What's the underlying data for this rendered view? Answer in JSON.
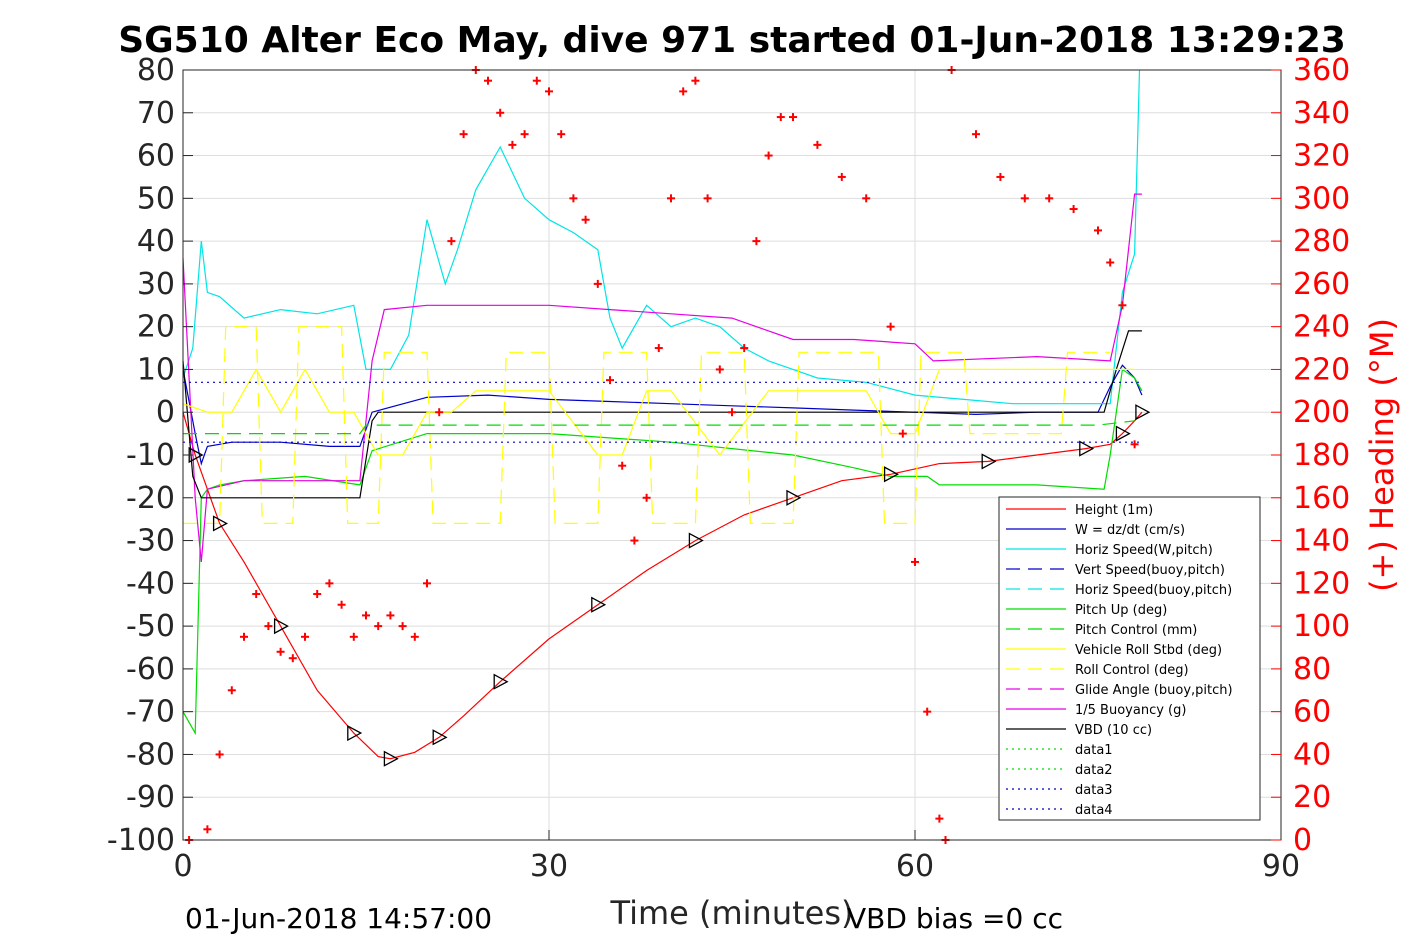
{
  "chart_data": {
    "type": "line",
    "title": "SG510 Alter Eco May, dive 971 started 01-Jun-2018 13:29:23",
    "xlabel": "Time (minutes)",
    "ylabel_right": "(+) Heading (°M)",
    "xlim": [
      0,
      90
    ],
    "ylim": [
      -100,
      80
    ],
    "ylim_right": [
      0,
      360
    ],
    "x_ticks": [
      "0",
      "30",
      "60",
      "90"
    ],
    "x_tick_values": [
      0,
      30,
      60,
      90
    ],
    "y_ticks": [
      "80",
      "70",
      "60",
      "50",
      "40",
      "30",
      "20",
      "10",
      "0",
      "-10",
      "-20",
      "-30",
      "-40",
      "-50",
      "-60",
      "-70",
      "-80",
      "-90",
      "-100"
    ],
    "y_tick_values": [
      80,
      70,
      60,
      50,
      40,
      30,
      20,
      10,
      0,
      -10,
      -20,
      -30,
      -40,
      -50,
      -60,
      -70,
      -80,
      -90,
      -100
    ],
    "y_right_ticks": [
      "360",
      "340",
      "320",
      "300",
      "280",
      "260",
      "240",
      "220",
      "200",
      "180",
      "160",
      "140",
      "120",
      "100",
      "80",
      "60",
      "40",
      "20",
      "0"
    ],
    "y_right_tick_values": [
      360,
      340,
      320,
      300,
      280,
      260,
      240,
      220,
      200,
      180,
      160,
      140,
      120,
      100,
      80,
      60,
      40,
      20,
      0
    ],
    "grid": true,
    "legend_position": "bottom-right",
    "footer_left": "01-Jun-2018 14:57:00",
    "footer_right": "VBD bias =0 cc",
    "legend": [
      {
        "name": "Height (1m)",
        "color": "#ff0000",
        "dash": "solid"
      },
      {
        "name": "W = dz/dt (cm/s)",
        "color": "#0000cc",
        "dash": "solid"
      },
      {
        "name": "Horiz Speed(W,pitch)",
        "color": "#00e5e5",
        "dash": "solid"
      },
      {
        "name": "Vert Speed(buoy,pitch)",
        "color": "#0000cc",
        "dash": "dashed"
      },
      {
        "name": "Horiz Speed(buoy,pitch)",
        "color": "#00e5e5",
        "dash": "dashed"
      },
      {
        "name": "Pitch Up (deg)",
        "color": "#00dd00",
        "dash": "solid"
      },
      {
        "name": "Pitch Control (mm)",
        "color": "#00dd00",
        "dash": "dashed"
      },
      {
        "name": "Vehicle Roll Stbd (deg)",
        "color": "#ffff00",
        "dash": "solid"
      },
      {
        "name": "Roll Control (deg)",
        "color": "#ffff00",
        "dash": "dashed"
      },
      {
        "name": "Glide Angle (buoy,pitch)",
        "color": "#e500e5",
        "dash": "dashed"
      },
      {
        "name": "1/5 Buoyancy (g)",
        "color": "#e500e5",
        "dash": "solid"
      },
      {
        "name": "VBD (10 cc)",
        "color": "#000000",
        "dash": "solid"
      },
      {
        "name": "data1",
        "color": "#00dd00",
        "dash": "dotted"
      },
      {
        "name": "data2",
        "color": "#00dd00",
        "dash": "dotted"
      },
      {
        "name": "data3",
        "color": "#0000cc",
        "dash": "dotted"
      },
      {
        "name": "data4",
        "color": "#0000cc",
        "dash": "dotted"
      }
    ],
    "series": [
      {
        "name": "Height (1m)",
        "x": [
          0,
          1,
          2,
          3,
          5,
          8,
          11,
          14,
          16,
          17,
          19,
          21,
          23,
          26,
          30,
          34,
          38,
          42,
          46,
          50,
          54,
          58,
          62,
          66,
          70,
          74,
          76,
          77,
          78,
          78.6
        ],
        "y": [
          0,
          -10,
          -18,
          -26,
          -35,
          -50,
          -65,
          -75,
          -80.5,
          -81,
          -79.5,
          -76,
          -71,
          -63,
          -53,
          -45,
          -37,
          -30,
          -24,
          -20,
          -16,
          -14.5,
          -12,
          -11.5,
          -10,
          -8.5,
          -7.5,
          -5,
          -2,
          0
        ]
      },
      {
        "name": "W = dz/dt (cm/s)",
        "x": [
          0,
          1,
          1.5,
          2,
          4,
          8,
          12,
          14.5,
          15.5,
          20,
          25,
          30,
          35,
          40,
          45,
          50,
          55,
          60,
          65,
          70,
          75,
          76,
          77,
          78,
          78.6
        ],
        "y": [
          10,
          -5,
          -12,
          -8,
          -7,
          -7,
          -8,
          -8,
          0,
          3.5,
          4,
          3,
          2.5,
          2,
          1.5,
          1,
          0.5,
          0,
          -0.5,
          0,
          0,
          6,
          11,
          8,
          4
        ]
      },
      {
        "name": "Horiz Speed(W,pitch)",
        "x": [
          0,
          0.8,
          1.5,
          2,
          3,
          5,
          8,
          11,
          14,
          15,
          17,
          18.5,
          20,
          21.5,
          22.5,
          24,
          26,
          28,
          30,
          32,
          34,
          35,
          36,
          38,
          40,
          42,
          44,
          46,
          48,
          50,
          52,
          56,
          60,
          64,
          68,
          72,
          76,
          77,
          78,
          78.4
        ],
        "y": [
          8,
          15,
          40,
          28,
          27,
          22,
          24,
          23,
          25,
          10,
          10,
          18,
          45,
          30,
          38,
          52,
          62,
          50,
          45,
          42,
          38,
          22,
          15,
          25,
          20,
          22,
          20,
          15,
          12,
          10,
          8,
          7,
          4,
          3,
          2,
          2,
          2,
          28,
          37,
          80
        ]
      },
      {
        "name": "Pitch Up (deg)",
        "x": [
          0,
          1,
          1.5,
          2,
          3,
          5,
          10,
          14.5,
          15.5,
          20,
          30,
          40,
          50,
          55,
          58,
          61,
          62,
          70,
          75.5,
          76,
          77,
          78,
          78.6
        ],
        "y": [
          -70,
          -75,
          -20,
          -18,
          -17,
          -16,
          -15,
          -17,
          -9,
          -5,
          -5,
          -7,
          -10,
          -13,
          -15,
          -15,
          -17,
          -17,
          -18,
          -10,
          10,
          8,
          5
        ]
      },
      {
        "name": "1/5 Buoyancy (g)",
        "x": [
          0,
          1,
          1.5,
          2,
          5,
          14.5,
          15.5,
          16.5,
          20,
          30,
          35,
          40,
          45,
          50,
          55,
          60,
          61.5,
          70,
          76,
          77,
          78,
          78.6
        ],
        "y": [
          36,
          -20,
          -35,
          -18,
          -16,
          -16,
          12,
          24,
          25,
          25,
          24,
          23,
          22,
          17,
          17,
          16,
          12,
          13,
          12,
          25,
          51,
          51
        ]
      },
      {
        "name": "VBD (10 cc)",
        "x": [
          0,
          0.8,
          1.5,
          2,
          14.5,
          15.5,
          16,
          40,
          75.5,
          76.5,
          77.5,
          78.6
        ],
        "y": [
          12,
          -15,
          -20,
          -20,
          -20,
          -2,
          0,
          0,
          0,
          10,
          19,
          19
        ]
      },
      {
        "name": "Vehicle Roll Stbd (deg)",
        "x": [
          0,
          2,
          4,
          6,
          8,
          10,
          12,
          14,
          16,
          18,
          20,
          22,
          24,
          30,
          34,
          36,
          38,
          40,
          44,
          48,
          52,
          56,
          58,
          60,
          62,
          66,
          70,
          74,
          76,
          78
        ],
        "y": [
          2,
          0,
          0,
          10,
          0,
          10,
          0,
          0,
          -10,
          -10,
          0,
          0,
          5,
          5,
          -10,
          -10,
          5,
          5,
          -10,
          5,
          5,
          5,
          -5,
          -5,
          10,
          10,
          10,
          10,
          10,
          10
        ]
      },
      {
        "name": "Roll Control (deg)",
        "x": [
          0,
          3,
          3.5,
          6,
          6.5,
          9,
          9.5,
          13,
          13.5,
          16,
          16.5,
          20,
          20.5,
          26,
          26.5,
          30,
          30.5,
          34,
          34.5,
          38,
          38.5,
          42,
          42.5,
          46,
          46.5,
          50,
          50.5,
          57,
          57.5,
          60,
          60.5,
          64,
          64.5,
          72,
          72.5,
          76
        ],
        "y": [
          -26,
          -26,
          20,
          20,
          -26,
          -26,
          20,
          20,
          -26,
          -26,
          14,
          14,
          -26,
          -26,
          14,
          14,
          -26,
          -26,
          14,
          14,
          -26,
          -26,
          14,
          14,
          -26,
          -26,
          14,
          14,
          -26,
          -26,
          14,
          14,
          -5,
          -5,
          14,
          14
        ]
      },
      {
        "name": "Pitch Control (mm)",
        "x": [
          0,
          14.5,
          15,
          40,
          75,
          78
        ],
        "y": [
          -5,
          -5,
          -3,
          -3,
          -3,
          -2
        ]
      },
      {
        "name": "data3",
        "x": [
          0,
          78.6
        ],
        "y": [
          7,
          7
        ]
      },
      {
        "name": "data4",
        "x": [
          0,
          78.6
        ],
        "y": [
          -7,
          -7
        ]
      },
      {
        "name": "Heading",
        "axis": "right",
        "x": [
          0.5,
          2,
          3,
          4,
          5,
          6,
          7,
          8,
          9,
          10,
          11,
          12,
          13,
          14,
          15,
          16,
          17,
          18,
          19,
          20,
          21,
          22,
          23,
          24,
          25,
          26,
          27,
          28,
          29,
          30,
          31,
          32,
          33,
          34,
          35,
          36,
          37,
          38,
          39,
          40,
          41,
          42,
          43,
          44,
          45,
          46,
          47,
          48,
          49,
          50,
          52,
          54,
          56,
          58,
          59,
          60,
          61,
          62,
          62.5,
          63,
          65,
          67,
          69,
          71,
          73,
          75,
          76,
          77,
          78
        ],
        "y": [
          0,
          5,
          40,
          70,
          95,
          115,
          100,
          88,
          85,
          95,
          115,
          120,
          110,
          95,
          105,
          100,
          105,
          100,
          95,
          120,
          200,
          280,
          330,
          360,
          355,
          340,
          325,
          330,
          355,
          350,
          330,
          300,
          290,
          260,
          215,
          175,
          140,
          160,
          230,
          300,
          350,
          355,
          300,
          220,
          200,
          230,
          280,
          320,
          338,
          338,
          325,
          310,
          300,
          240,
          190,
          130,
          60,
          10,
          0,
          360,
          330,
          310,
          300,
          300,
          295,
          285,
          270,
          250,
          185
        ]
      }
    ]
  }
}
